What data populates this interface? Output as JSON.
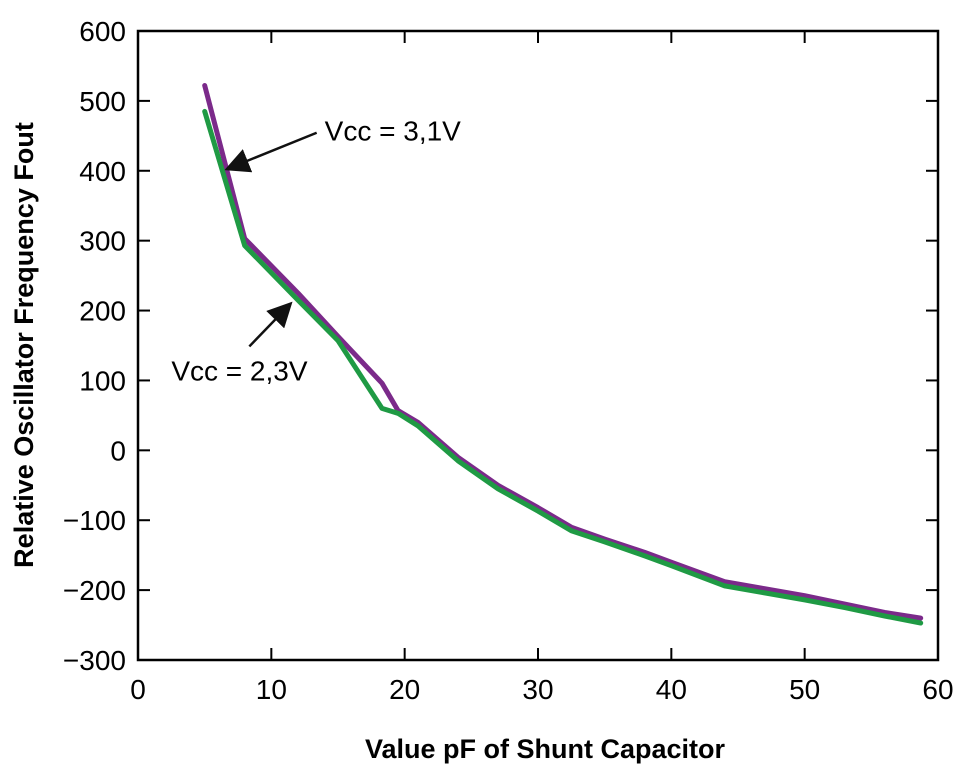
{
  "chart_data": {
    "type": "line",
    "title": "",
    "xlabel": "Value pF of Shunt Capacitor",
    "ylabel": "Relative Oscillator Frequency Fout",
    "xlim": [
      0,
      60
    ],
    "ylim": [
      -300,
      600
    ],
    "x_ticks": [
      0,
      10,
      20,
      30,
      40,
      50,
      60
    ],
    "x_tick_labels": [
      "0",
      "10",
      "20",
      "30",
      "40",
      "50",
      "60"
    ],
    "y_ticks": [
      600,
      500,
      400,
      300,
      200,
      100,
      0,
      -100,
      -200,
      -300
    ],
    "y_tick_labels": [
      "600",
      "500",
      "400",
      "300",
      "200",
      "100",
      "0",
      "−100",
      "−200",
      "−300"
    ],
    "grid": false,
    "legend": "none",
    "series": [
      {
        "color": "#7b2a8a",
        "x": [
          5,
          8,
          12,
          15,
          18.3,
          19.5,
          21,
          24,
          27,
          30,
          32.5,
          35,
          38,
          40,
          44,
          47,
          50,
          53,
          56,
          58.7
        ],
        "y": [
          522,
          303,
          225,
          163,
          96,
          57,
          40,
          -10,
          -50,
          -82,
          -110,
          -127,
          -146,
          -160,
          -188,
          -198,
          -208,
          -220,
          -232,
          -240
        ]
      },
      {
        "color": "#1f9a44",
        "x": [
          5,
          8,
          12,
          15,
          18.3,
          19.5,
          21,
          24,
          27,
          30,
          32.5,
          35,
          38,
          40,
          44,
          47,
          50,
          53,
          56,
          58.7
        ],
        "y": [
          485,
          293,
          215,
          157,
          60,
          53,
          35,
          -15,
          -55,
          -87,
          -115,
          -131,
          -151,
          -165,
          -194,
          -204,
          -214,
          -225,
          -237,
          -247
        ]
      }
    ],
    "annotations": [
      {
        "text": "Vcc = 3,1V",
        "x": 14,
        "y": 443,
        "arrow_to_x": 7,
        "arrow_to_y": 405
      },
      {
        "text": "Vcc = 2,3V",
        "x": 2.5,
        "y": 100,
        "arrow_to_x": 11.2,
        "arrow_to_y": 205
      }
    ]
  }
}
